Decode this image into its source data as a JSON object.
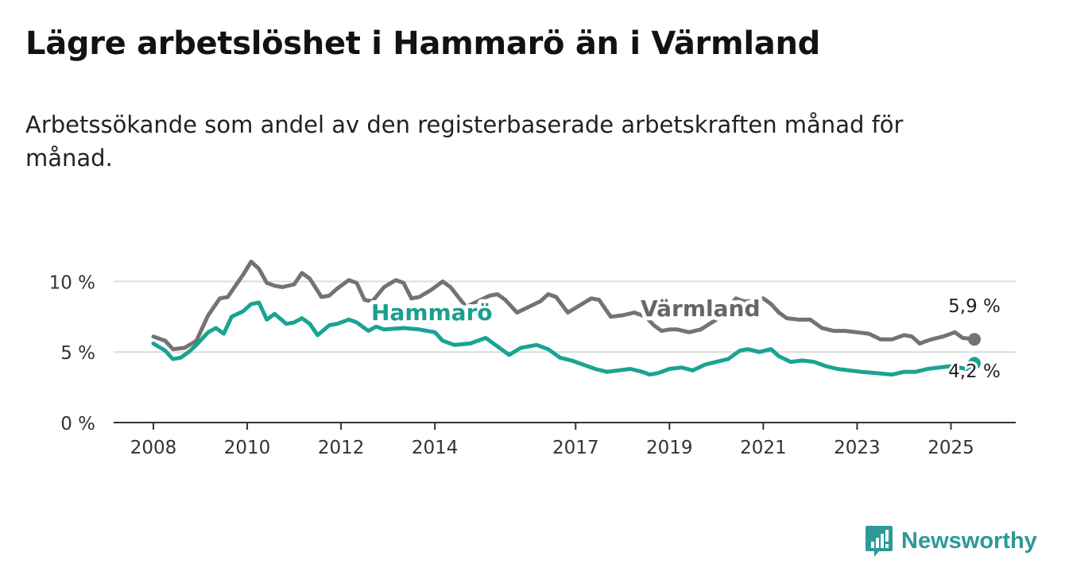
{
  "title": "Lägre arbetslöshet i Hammarö än i Värmland",
  "subtitle": "Arbetssökande som andel av den registerbaserade arbetskraften månad för månad.",
  "brand": {
    "name": "Newsworthy",
    "icon": "bar-chart-logo-icon",
    "color": "#2b9a98"
  },
  "chart_data": {
    "type": "line",
    "title": "Lägre arbetslöshet i Hammarö än i Värmland",
    "subtitle": "Arbetssökande som andel av den registerbaserade arbetskraften månad för månad.",
    "xlabel": "",
    "ylabel": "",
    "x_range": [
      "2008-01",
      "2025-07"
    ],
    "ylim": [
      0,
      12.5
    ],
    "y_ticks": [
      0,
      5,
      10
    ],
    "y_tick_labels": [
      "0 %",
      "5 %",
      "10 %"
    ],
    "x_ticks": [
      "2008",
      "2010",
      "2012",
      "2014",
      "2017",
      "2019",
      "2021",
      "2023",
      "2025"
    ],
    "grid": true,
    "series": [
      {
        "name": "Värmland",
        "color": "#737373",
        "label_color": "#666666",
        "end_label": "5,9 %",
        "points": [
          [
            "2008-01",
            6.1
          ],
          [
            "2008-04",
            5.8
          ],
          [
            "2008-06",
            5.2
          ],
          [
            "2008-09",
            5.3
          ],
          [
            "2008-12",
            5.8
          ],
          [
            "2009-03",
            7.6
          ],
          [
            "2009-06",
            8.8
          ],
          [
            "2009-08",
            8.9
          ],
          [
            "2009-10",
            9.7
          ],
          [
            "2009-12",
            10.5
          ],
          [
            "2010-02",
            11.4
          ],
          [
            "2010-04",
            10.9
          ],
          [
            "2010-06",
            9.9
          ],
          [
            "2010-08",
            9.7
          ],
          [
            "2010-10",
            9.6
          ],
          [
            "2011-01",
            9.8
          ],
          [
            "2011-03",
            10.6
          ],
          [
            "2011-05",
            10.2
          ],
          [
            "2011-08",
            8.9
          ],
          [
            "2011-10",
            9.0
          ],
          [
            "2011-12",
            9.5
          ],
          [
            "2012-03",
            10.1
          ],
          [
            "2012-05",
            9.9
          ],
          [
            "2012-07",
            8.7
          ],
          [
            "2012-09",
            8.6
          ],
          [
            "2012-12",
            9.6
          ],
          [
            "2013-03",
            10.1
          ],
          [
            "2013-05",
            9.9
          ],
          [
            "2013-07",
            8.8
          ],
          [
            "2013-09",
            8.9
          ],
          [
            "2013-12",
            9.4
          ],
          [
            "2014-03",
            10.0
          ],
          [
            "2014-05",
            9.6
          ],
          [
            "2014-09",
            8.2
          ],
          [
            "2014-12",
            8.6
          ],
          [
            "2015-03",
            9.0
          ],
          [
            "2015-05",
            9.1
          ],
          [
            "2015-07",
            8.7
          ],
          [
            "2015-10",
            7.8
          ],
          [
            "2016-01",
            8.2
          ],
          [
            "2016-04",
            8.6
          ],
          [
            "2016-06",
            9.1
          ],
          [
            "2016-08",
            8.9
          ],
          [
            "2016-11",
            7.8
          ],
          [
            "2017-02",
            8.3
          ],
          [
            "2017-05",
            8.8
          ],
          [
            "2017-07",
            8.7
          ],
          [
            "2017-10",
            7.5
          ],
          [
            "2018-01",
            7.6
          ],
          [
            "2018-04",
            7.8
          ],
          [
            "2018-07",
            7.5
          ],
          [
            "2018-09",
            6.9
          ],
          [
            "2018-11",
            6.5
          ],
          [
            "2019-01",
            6.6
          ],
          [
            "2019-03",
            6.6
          ],
          [
            "2019-06",
            6.4
          ],
          [
            "2019-09",
            6.6
          ],
          [
            "2020-01",
            7.3
          ],
          [
            "2020-03",
            7.8
          ],
          [
            "2020-06",
            8.8
          ],
          [
            "2020-08",
            8.6
          ],
          [
            "2020-10",
            8.6
          ],
          [
            "2021-01",
            8.8
          ],
          [
            "2021-03",
            8.4
          ],
          [
            "2021-05",
            7.8
          ],
          [
            "2021-07",
            7.4
          ],
          [
            "2021-10",
            7.3
          ],
          [
            "2022-01",
            7.3
          ],
          [
            "2022-04",
            6.7
          ],
          [
            "2022-07",
            6.5
          ],
          [
            "2022-10",
            6.5
          ],
          [
            "2023-01",
            6.4
          ],
          [
            "2023-04",
            6.3
          ],
          [
            "2023-07",
            5.9
          ],
          [
            "2023-10",
            5.9
          ],
          [
            "2024-01",
            6.2
          ],
          [
            "2024-03",
            6.1
          ],
          [
            "2024-05",
            5.6
          ],
          [
            "2024-08",
            5.9
          ],
          [
            "2024-11",
            6.1
          ],
          [
            "2025-02",
            6.4
          ],
          [
            "2025-04",
            6.0
          ],
          [
            "2025-07",
            5.9
          ]
        ]
      },
      {
        "name": "Hammarö",
        "color": "#1aa393",
        "label_color": "#1a9f8e",
        "end_label": "4,2 %",
        "points": [
          [
            "2008-01",
            5.6
          ],
          [
            "2008-04",
            5.1
          ],
          [
            "2008-06",
            4.5
          ],
          [
            "2008-08",
            4.6
          ],
          [
            "2008-10",
            5.0
          ],
          [
            "2008-12",
            5.5
          ],
          [
            "2009-03",
            6.4
          ],
          [
            "2009-05",
            6.7
          ],
          [
            "2009-07",
            6.3
          ],
          [
            "2009-09",
            7.5
          ],
          [
            "2009-12",
            7.9
          ],
          [
            "2010-02",
            8.4
          ],
          [
            "2010-04",
            8.5
          ],
          [
            "2010-06",
            7.3
          ],
          [
            "2010-08",
            7.7
          ],
          [
            "2010-11",
            7.0
          ],
          [
            "2011-01",
            7.1
          ],
          [
            "2011-03",
            7.4
          ],
          [
            "2011-05",
            7.0
          ],
          [
            "2011-07",
            6.2
          ],
          [
            "2011-10",
            6.9
          ],
          [
            "2011-12",
            7.0
          ],
          [
            "2012-03",
            7.3
          ],
          [
            "2012-05",
            7.1
          ],
          [
            "2012-08",
            6.5
          ],
          [
            "2012-10",
            6.8
          ],
          [
            "2012-12",
            6.6
          ],
          [
            "2013-05",
            6.7
          ],
          [
            "2013-09",
            6.6
          ],
          [
            "2014-01",
            6.4
          ],
          [
            "2014-03",
            5.8
          ],
          [
            "2014-06",
            5.5
          ],
          [
            "2014-10",
            5.6
          ],
          [
            "2015-02",
            6.0
          ],
          [
            "2015-05",
            5.4
          ],
          [
            "2015-08",
            4.8
          ],
          [
            "2015-11",
            5.3
          ],
          [
            "2016-03",
            5.5
          ],
          [
            "2016-06",
            5.2
          ],
          [
            "2016-09",
            4.6
          ],
          [
            "2016-12",
            4.4
          ],
          [
            "2017-03",
            4.1
          ],
          [
            "2017-06",
            3.8
          ],
          [
            "2017-09",
            3.6
          ],
          [
            "2017-12",
            3.7
          ],
          [
            "2018-03",
            3.8
          ],
          [
            "2018-06",
            3.6
          ],
          [
            "2018-08",
            3.4
          ],
          [
            "2018-10",
            3.5
          ],
          [
            "2019-01",
            3.8
          ],
          [
            "2019-04",
            3.9
          ],
          [
            "2019-07",
            3.7
          ],
          [
            "2019-10",
            4.1
          ],
          [
            "2020-01",
            4.3
          ],
          [
            "2020-04",
            4.5
          ],
          [
            "2020-07",
            5.1
          ],
          [
            "2020-09",
            5.2
          ],
          [
            "2020-12",
            5.0
          ],
          [
            "2021-03",
            5.2
          ],
          [
            "2021-05",
            4.7
          ],
          [
            "2021-08",
            4.3
          ],
          [
            "2021-11",
            4.4
          ],
          [
            "2022-02",
            4.3
          ],
          [
            "2022-05",
            4.0
          ],
          [
            "2022-08",
            3.8
          ],
          [
            "2022-11",
            3.7
          ],
          [
            "2023-02",
            3.6
          ],
          [
            "2023-06",
            3.5
          ],
          [
            "2023-10",
            3.4
          ],
          [
            "2024-01",
            3.6
          ],
          [
            "2024-04",
            3.6
          ],
          [
            "2024-07",
            3.8
          ],
          [
            "2024-10",
            3.9
          ],
          [
            "2025-01",
            4.0
          ],
          [
            "2025-03",
            3.9
          ],
          [
            "2025-05",
            3.8
          ],
          [
            "2025-07",
            4.2
          ]
        ]
      }
    ]
  }
}
